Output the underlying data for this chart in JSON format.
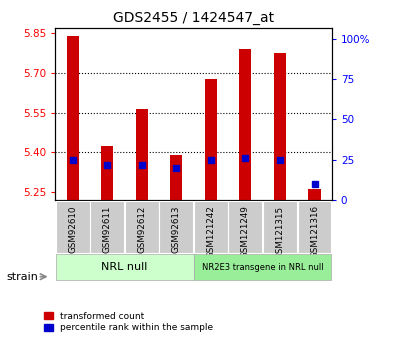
{
  "title": "GDS2455 / 1424547_at",
  "samples": [
    "GSM92610",
    "GSM92611",
    "GSM92612",
    "GSM92613",
    "GSM121242",
    "GSM121249",
    "GSM121315",
    "GSM121316"
  ],
  "red_values": [
    5.838,
    5.425,
    5.565,
    5.39,
    5.675,
    5.79,
    5.775,
    5.26
  ],
  "blue_values": [
    25,
    22,
    22,
    20,
    25,
    26,
    25,
    10
  ],
  "ylim_left": [
    5.22,
    5.87
  ],
  "ylim_right": [
    0,
    107
  ],
  "yticks_left": [
    5.25,
    5.4,
    5.55,
    5.7,
    5.85
  ],
  "yticks_right": [
    0,
    25,
    50,
    75,
    100
  ],
  "ytick_labels_right": [
    "0",
    "25",
    "50",
    "75",
    "100%"
  ],
  "group1_label": "NRL null",
  "group2_label": "NR2E3 transgene in NRL null",
  "bar_width": 0.35,
  "red_color": "#cc0000",
  "blue_color": "#0000cc",
  "group1_bg": "#ccffcc",
  "group2_bg": "#99ee99",
  "sample_box_bg": "#cccccc",
  "strain_label": "strain",
  "legend_red": "transformed count",
  "legend_blue": "percentile rank within the sample",
  "base_value": 5.22
}
